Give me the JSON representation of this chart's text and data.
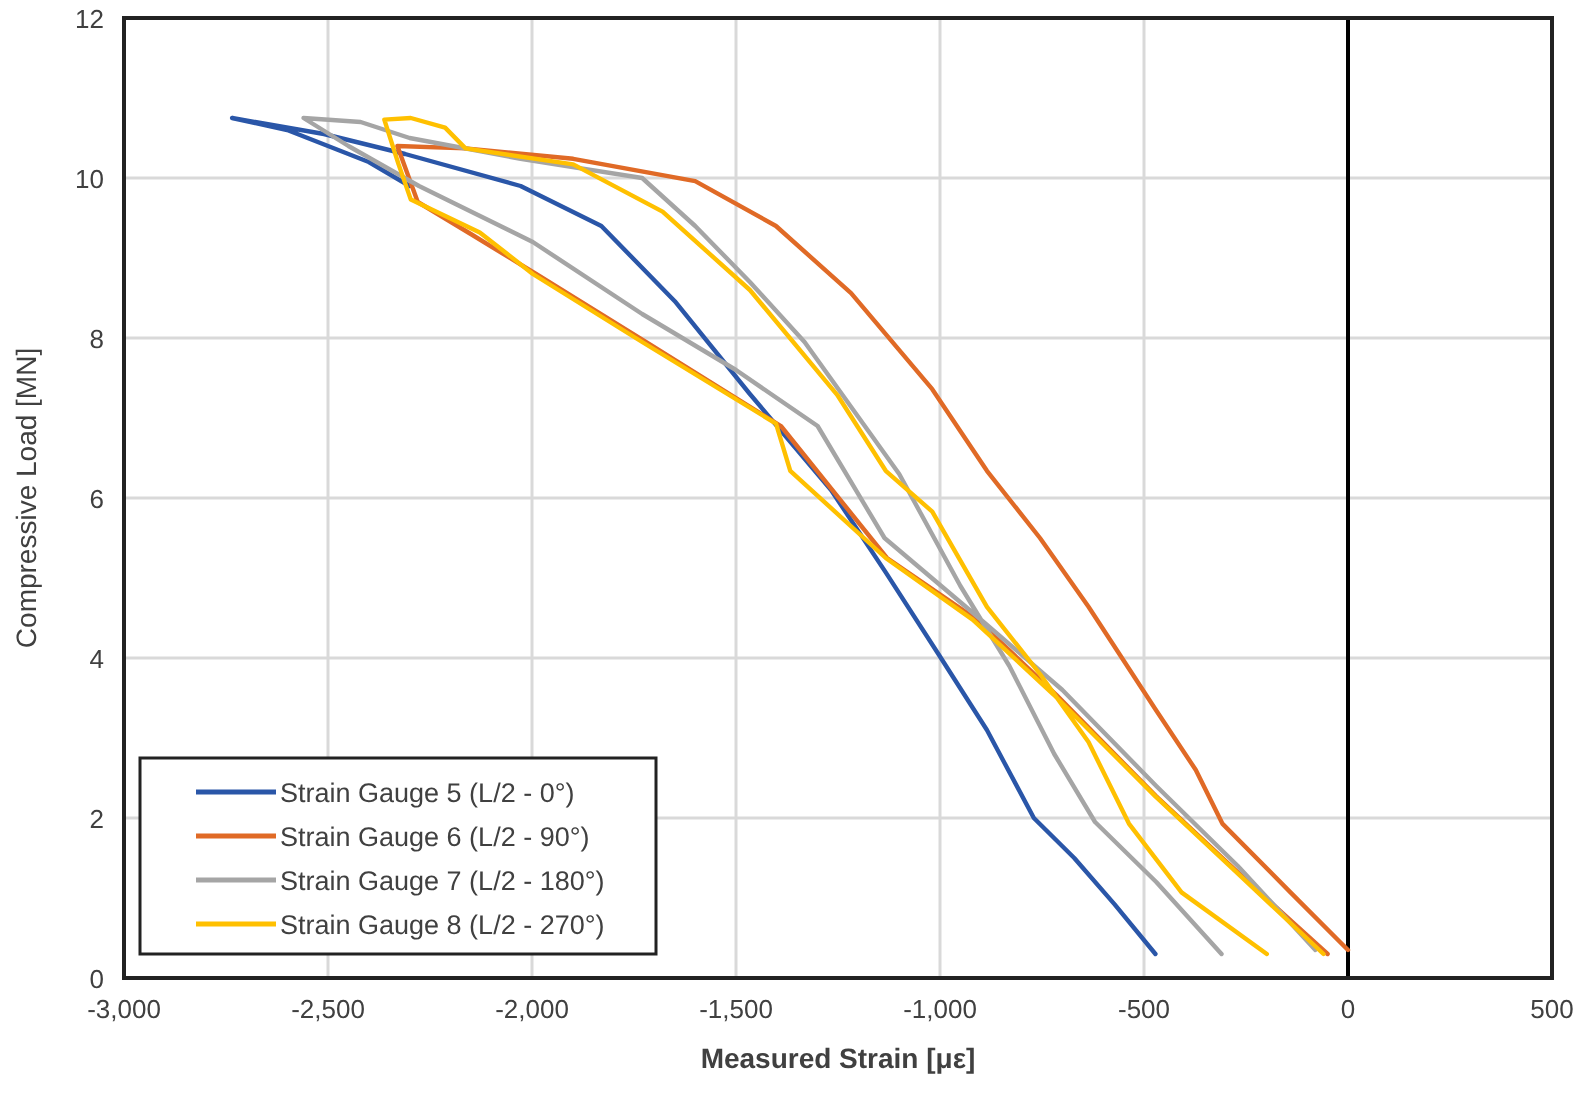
{
  "chart_data": {
    "type": "line",
    "xlabel": "Measured Strain [με]",
    "ylabel": "Compressive Load [MN]",
    "xlim": [
      -3000,
      500
    ],
    "xticks": [
      {
        "value": -3000,
        "label": "-3,000"
      },
      {
        "value": -2500,
        "label": "-2,500"
      },
      {
        "value": -2000,
        "label": "-2,000"
      },
      {
        "value": -1500,
        "label": "-1,500"
      },
      {
        "value": -1000,
        "label": "-1,000"
      },
      {
        "value": -500,
        "label": "-500"
      },
      0,
      500
    ],
    "ylim": [
      0,
      12
    ],
    "yticks": [
      0,
      2,
      4,
      6,
      8,
      10,
      12
    ],
    "grid": true,
    "legend": "bottom left",
    "marker": "none",
    "line_style": "solid",
    "ref_lines": [
      {
        "axis": "x",
        "value": 0,
        "color": "#000000"
      }
    ],
    "series": [
      {
        "name": "Strain Gauge 5 (L/2 - 0°)",
        "color": "#2a56a8",
        "x": [
          -472,
          -572,
          -671,
          -770,
          -885,
          -1004,
          -1133,
          -1267,
          -1466,
          -1650,
          -1830,
          -2028,
          -2311,
          -2510,
          -2735,
          -2600,
          -2400,
          -2300
        ],
        "values": [
          0.3,
          0.92,
          1.5,
          2.0,
          3.1,
          4.05,
          5.07,
          6.1,
          7.3,
          8.46,
          9.4,
          9.9,
          10.3,
          10.55,
          10.75,
          10.6,
          10.2,
          9.9
        ]
      },
      {
        "name": "Strain Gauge 6 (L/2 - 90°)",
        "color": "#e06a26",
        "x": [
          0,
          -141,
          -308,
          -373,
          -472,
          -636,
          -755,
          -885,
          -1019,
          -1218,
          -1402,
          -1600,
          -1899,
          -2163,
          -2330,
          -2280,
          -2150,
          -1990,
          -1720,
          -1390,
          -1130,
          -910,
          -715,
          -470,
          -270,
          -50
        ],
        "values": [
          0.35,
          1.07,
          1.93,
          2.6,
          3.36,
          4.64,
          5.5,
          6.34,
          7.36,
          8.56,
          9.4,
          9.96,
          10.24,
          10.37,
          10.4,
          9.7,
          9.3,
          8.8,
          7.95,
          6.9,
          5.25,
          4.48,
          3.54,
          2.27,
          1.32,
          0.3
        ]
      },
      {
        "name": "Strain Gauge 7 (L/2 - 180°)",
        "color": "#a5a5a5",
        "x": [
          -310,
          -470,
          -620,
          -720,
          -830,
          -950,
          -1100,
          -1332,
          -1466,
          -1600,
          -1730,
          -2028,
          -2300,
          -2420,
          -2560,
          -2450,
          -2277,
          -1998,
          -1730,
          -1500,
          -1300,
          -1136,
          -918,
          -700,
          -470,
          -270,
          -80
        ],
        "values": [
          0.3,
          1.2,
          1.95,
          2.8,
          3.9,
          4.9,
          6.3,
          7.95,
          8.7,
          9.4,
          10.0,
          10.24,
          10.5,
          10.7,
          10.75,
          10.4,
          9.9,
          9.2,
          8.3,
          7.6,
          6.9,
          5.5,
          4.56,
          3.6,
          2.4,
          1.4,
          0.35
        ]
      },
      {
        "name": "Strain Gauge 8 (L/2 - 270°)",
        "color": "#ffc000",
        "x": [
          -199,
          -408,
          -537,
          -636,
          -755,
          -885,
          -1019,
          -1133,
          -1252,
          -1466,
          -1680,
          -1899,
          -2163,
          -2213,
          -2297,
          -2362,
          -2327,
          -2297,
          -2128,
          -1998,
          -1730,
          -1402,
          -1367,
          -1133,
          -920,
          -721,
          -472,
          -273,
          -60
        ],
        "values": [
          0.3,
          1.07,
          1.93,
          2.95,
          3.8,
          4.64,
          5.83,
          6.34,
          7.29,
          8.6,
          9.58,
          10.17,
          10.37,
          10.63,
          10.75,
          10.73,
          10.17,
          9.73,
          9.32,
          8.8,
          7.95,
          6.93,
          6.34,
          5.25,
          4.48,
          3.54,
          2.27,
          1.32,
          0.3
        ]
      }
    ]
  }
}
